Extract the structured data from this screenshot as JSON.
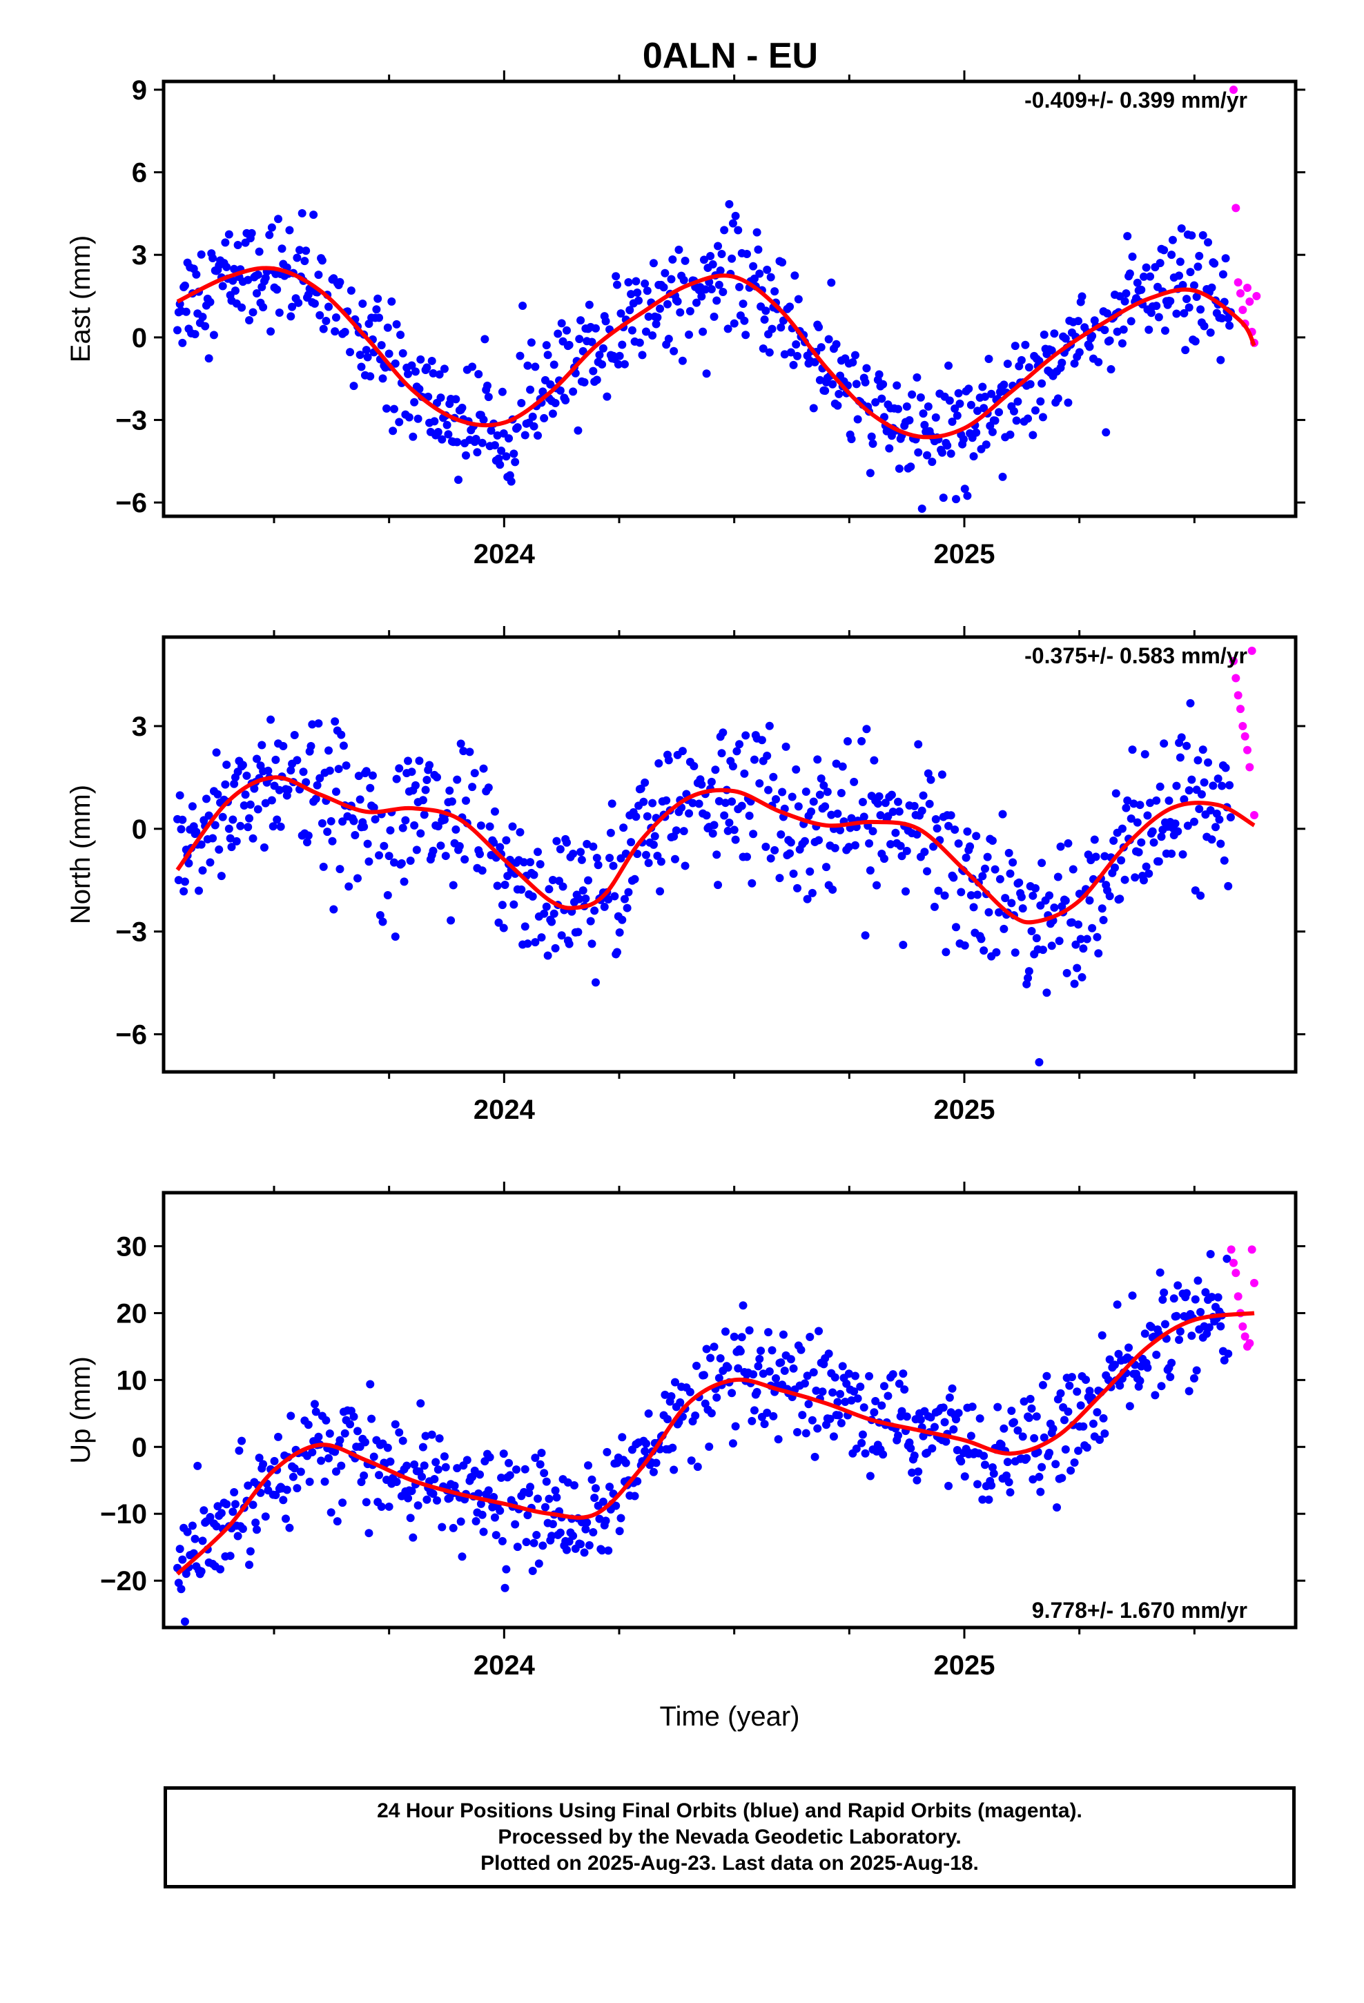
{
  "title": "0ALN - EU",
  "footer": {
    "line1": "24 Hour Positions Using Final Orbits (blue) and Rapid Orbits (magenta).",
    "line2": "Processed by the Nevada Geodetic Laboratory.",
    "line3": "Plotted on 2025-Aug-23. Last data on 2025-Aug-18."
  },
  "colors": {
    "final": "#0000ff",
    "rapid": "#ff00ff",
    "fit": "#ff0000"
  },
  "chart_data": [
    {
      "type": "scatter",
      "name": "east",
      "ylabel": "East (mm)",
      "xlabel": "",
      "rate": "-0.409+/- 0.399 mm/yr",
      "rate_position": "top-right",
      "xlim": [
        2023.26,
        2025.72
      ],
      "ylim": [
        -6.5,
        9.3
      ],
      "yticks": [
        -6,
        -3,
        0,
        3,
        6,
        9
      ],
      "xticks": [
        2024,
        2025
      ],
      "fit": {
        "x": [
          2023.29,
          2023.4,
          2023.5,
          2023.6,
          2023.7,
          2023.8,
          2023.9,
          2024.0,
          2024.1,
          2024.2,
          2024.3,
          2024.4,
          2024.5,
          2024.6,
          2024.7,
          2024.8,
          2024.9,
          2025.0,
          2025.1,
          2025.2,
          2025.3,
          2025.4,
          2025.5,
          2025.6,
          2025.63
        ],
        "y": [
          1.3,
          2.2,
          2.5,
          1.7,
          0.0,
          -1.9,
          -3.0,
          -3.1,
          -2.0,
          -0.3,
          0.9,
          1.9,
          2.2,
          1.0,
          -1.1,
          -2.8,
          -3.6,
          -3.3,
          -2.0,
          -0.6,
          0.5,
          1.4,
          1.7,
          0.6,
          -0.3
        ]
      },
      "amp": 2.9,
      "noise": 1.0,
      "rapid": {
        "x": [
          2025.585,
          2025.59,
          2025.595,
          2025.6,
          2025.605,
          2025.61,
          2025.615,
          2025.62,
          2025.625,
          2025.63,
          2025.635
        ],
        "y": [
          9.0,
          4.7,
          2.0,
          1.6,
          1.0,
          0.5,
          1.8,
          1.3,
          0.2,
          -0.2,
          1.5
        ]
      }
    },
    {
      "type": "scatter",
      "name": "north",
      "ylabel": "North (mm)",
      "xlabel": "",
      "rate": "-0.375+/- 0.583 mm/yr",
      "rate_position": "top-right",
      "xlim": [
        2023.26,
        2025.72
      ],
      "ylim": [
        -7.1,
        5.6
      ],
      "yticks": [
        -6,
        -3,
        0,
        3
      ],
      "xticks": [
        2024,
        2025
      ],
      "fit": {
        "x": [
          2023.29,
          2023.4,
          2023.5,
          2023.6,
          2023.7,
          2023.8,
          2023.9,
          2024.0,
          2024.1,
          2024.16,
          2024.22,
          2024.3,
          2024.4,
          2024.5,
          2024.6,
          2024.7,
          2024.8,
          2024.9,
          2025.0,
          2025.1,
          2025.16,
          2025.25,
          2025.35,
          2025.45,
          2025.55,
          2025.63
        ],
        "y": [
          -1.2,
          0.8,
          1.5,
          1.0,
          0.5,
          0.6,
          0.3,
          -0.9,
          -2.1,
          -2.3,
          -1.9,
          -0.3,
          0.9,
          1.1,
          0.5,
          0.1,
          0.2,
          0.0,
          -1.2,
          -2.5,
          -2.7,
          -2.1,
          -0.5,
          0.6,
          0.7,
          0.1
        ]
      },
      "amp": 2.6,
      "noise": 1.1,
      "rapid": {
        "x": [
          2025.585,
          2025.59,
          2025.595,
          2025.6,
          2025.605,
          2025.61,
          2025.615,
          2025.62,
          2025.625,
          2025.63
        ],
        "y": [
          4.9,
          4.4,
          3.9,
          3.5,
          3.0,
          2.7,
          2.3,
          1.8,
          5.2,
          0.4
        ]
      }
    },
    {
      "type": "scatter",
      "name": "up",
      "ylabel": "Up (mm)",
      "xlabel": "Time (year)",
      "rate": "9.778+/- 1.670 mm/yr",
      "rate_position": "bottom-right",
      "xlim": [
        2023.26,
        2025.72
      ],
      "ylim": [
        -27,
        38
      ],
      "yticks": [
        -20,
        -10,
        0,
        10,
        20,
        30
      ],
      "xticks": [
        2024,
        2025
      ],
      "fit": {
        "x": [
          2023.29,
          2023.4,
          2023.5,
          2023.6,
          2023.7,
          2023.8,
          2023.9,
          2024.0,
          2024.1,
          2024.2,
          2024.3,
          2024.4,
          2024.5,
          2024.6,
          2024.7,
          2024.8,
          2024.9,
          2025.0,
          2025.1,
          2025.2,
          2025.3,
          2025.4,
          2025.5,
          2025.63
        ],
        "y": [
          -19.0,
          -12.0,
          -3.5,
          0.3,
          -2.0,
          -5.0,
          -7.0,
          -8.5,
          -10.0,
          -10.0,
          -3.0,
          6.5,
          10.0,
          8.5,
          6.5,
          4.0,
          2.5,
          1.0,
          -1.0,
          1.5,
          8.0,
          15.0,
          19.0,
          20.0
        ]
      },
      "amp": 8.0,
      "noise": 4.0,
      "rapid": {
        "x": [
          2025.58,
          2025.585,
          2025.59,
          2025.595,
          2025.6,
          2025.605,
          2025.61,
          2025.615,
          2025.62,
          2025.625,
          2025.63
        ],
        "y": [
          29.5,
          27.5,
          26.0,
          22.5,
          20.0,
          18.0,
          16.5,
          15.0,
          15.5,
          29.5,
          24.5
        ]
      }
    }
  ]
}
